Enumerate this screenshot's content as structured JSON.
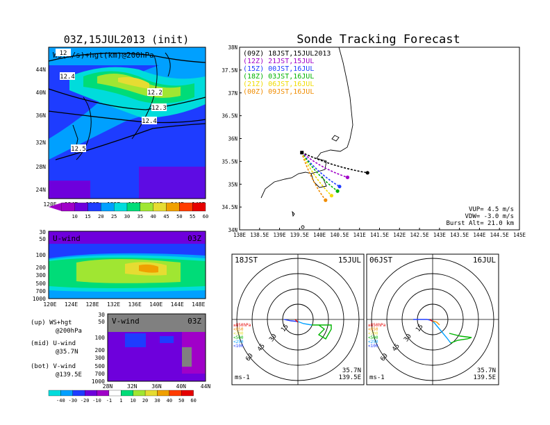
{
  "colors": {
    "c10": "#a000c8",
    "c15": "#6e00dc",
    "c20": "#1e3cff",
    "c25": "#00a0ff",
    "c30": "#00dcdc",
    "c35": "#00dc78",
    "c40": "#a0e632",
    "c45": "#e6dc32",
    "c50": "#f0a000",
    "c55": "#ff3c00",
    "c60": "#e60000",
    "track00": "#000000",
    "track12": "#a000c8",
    "track15": "#1e3cff",
    "track18": "#00b400",
    "track21": "#f0dc00",
    "track00b": "#f08c00"
  },
  "left_top": {
    "title": "03Z,15JUL2013 (init)",
    "label": "WS(m/s)+hgt(km)@200hPa",
    "y_ticks": [
      "44N",
      "40N",
      "36N",
      "32N",
      "28N",
      "24N"
    ],
    "x_ticks": [
      "120E",
      "124E",
      "128E",
      "132E",
      "136E",
      "140E",
      "144E",
      "148E"
    ],
    "contour_labels": [
      "12.4",
      "12.2",
      "12.3",
      "12.4",
      "12.5",
      "12"
    ],
    "colorbar": [
      "10",
      "15",
      "20",
      "25",
      "30",
      "35",
      "40",
      "45",
      "50",
      "55",
      "60"
    ]
  },
  "left_mid": {
    "label": "U-wind",
    "time": "03Z",
    "y_ticks": [
      "30",
      "50",
      "100",
      "200",
      "300",
      "500",
      "700",
      "1000"
    ],
    "x_ticks": [
      "120E",
      "124E",
      "128E",
      "132E",
      "136E",
      "140E",
      "144E",
      "148E"
    ]
  },
  "left_bot": {
    "label": "V-wind",
    "time": "03Z",
    "y_ticks": [
      "30",
      "50",
      "100",
      "200",
      "300",
      "500",
      "700",
      "1000"
    ],
    "x_ticks": [
      "28N",
      "32N",
      "36N",
      "40N",
      "44N"
    ],
    "colorbar": [
      "-40",
      "-30",
      "-20",
      "-10",
      "-1",
      "1",
      "10",
      "20",
      "30",
      "40",
      "50",
      "60"
    ]
  },
  "legend_text": [
    {
      "a": "(up) WS+hgt",
      "b": "@200hPa"
    },
    {
      "a": "(mid) U-wind",
      "b": "@35.7N"
    },
    {
      "a": "(bot) V-wind",
      "b": "@139.5E"
    }
  ],
  "chart_data": {
    "type": "line",
    "title": "Sonde Tracking Forecast",
    "x_ticks": [
      "138E",
      "138.5E",
      "139E",
      "139.5E",
      "140E",
      "140.5E",
      "141E",
      "141.5E",
      "142E",
      "142.5E",
      "143E",
      "143.5E",
      "144E",
      "144.5E",
      "145E"
    ],
    "y_ticks": [
      "38N",
      "37.5N",
      "37N",
      "36.5N",
      "36N",
      "35.5N",
      "35N",
      "34.5N",
      "34N"
    ],
    "xlim": [
      138,
      145
    ],
    "ylim": [
      34,
      38
    ],
    "launch": {
      "lon": 139.55,
      "lat": 35.7
    },
    "series": [
      {
        "name": "(09Z) 18JST,15JUL2013",
        "end": {
          "lon": 141.2,
          "lat": 35.25
        },
        "color_key": "track00"
      },
      {
        "name": "(12Z) 21JST,15JUL",
        "end": {
          "lon": 140.7,
          "lat": 35.15
        },
        "color_key": "track12"
      },
      {
        "name": "(15Z) 00JST,16JUL",
        "end": {
          "lon": 140.5,
          "lat": 34.95
        },
        "color_key": "track15"
      },
      {
        "name": "(18Z) 03JST,16JUL",
        "end": {
          "lon": 140.45,
          "lat": 34.85
        },
        "color_key": "track18"
      },
      {
        "name": "(21Z) 06JST,16JUL",
        "end": {
          "lon": 140.3,
          "lat": 34.75
        },
        "color_key": "track21"
      },
      {
        "name": "(00Z) 09JST,16JUL",
        "end": {
          "lon": 140.15,
          "lat": 34.65
        },
        "color_key": "track00b"
      }
    ],
    "info": [
      "VUP= 4.5 m/s",
      "VDW= -3.0 m/s",
      "Burst Alt= 21.0 km"
    ]
  },
  "hodo_left": {
    "time": "18JST",
    "date": "15JUL",
    "loc1": "35.7N",
    "loc2": "139.5E",
    "unit": "ms-1",
    "rings": [
      "15",
      "30",
      "45",
      "60"
    ]
  },
  "hodo_right": {
    "time": "06JST",
    "date": "16JUL",
    "loc1": "35.7N",
    "loc2": "139.5E",
    "unit": "ms-1",
    "rings": [
      "15",
      "30",
      "45",
      "60"
    ]
  },
  "hodo_levels": [
    "≥850hPa",
    "<850",
    "<700",
    "<500",
    "<250",
    "<100"
  ]
}
